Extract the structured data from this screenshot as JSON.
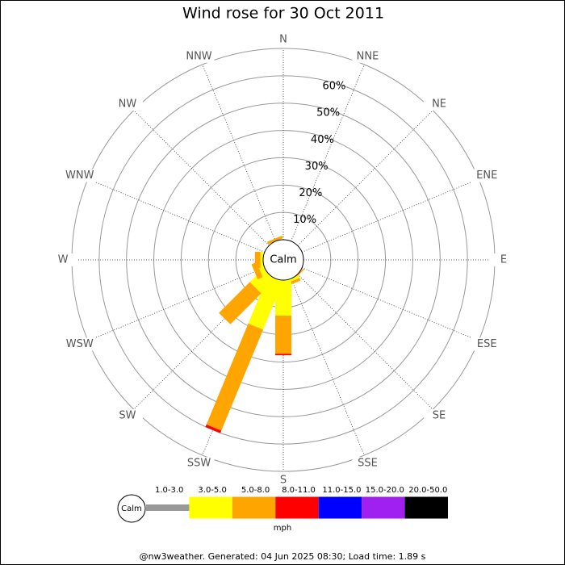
{
  "chart_data": {
    "type": "wind-rose",
    "title": "Wind rose for 30 Oct 2011",
    "categories": [
      "N",
      "NNE",
      "NE",
      "ENE",
      "E",
      "ESE",
      "SE",
      "SSE",
      "S",
      "SSW",
      "SW",
      "WSW",
      "W",
      "WNW",
      "NW",
      "NNW"
    ],
    "ylim": [
      0,
      70
    ],
    "yticks": [
      {
        "value": 10,
        "label": "10%"
      },
      {
        "value": 20,
        "label": "20%"
      },
      {
        "value": 30,
        "label": "30%"
      },
      {
        "value": 40,
        "label": "40%"
      },
      {
        "value": 50,
        "label": "50%"
      },
      {
        "value": 60,
        "label": "60%"
      }
    ],
    "calm_label": "Calm",
    "units": "mph",
    "series": [
      {
        "name": "1.0-3.0",
        "color": "#999999",
        "values": [
          0,
          0,
          0,
          0,
          0,
          0,
          0,
          0,
          0,
          0,
          0,
          0,
          0,
          0,
          0,
          0
        ]
      },
      {
        "name": "3.0-5.0",
        "color": "#ffff00",
        "values": [
          0,
          0,
          0,
          0,
          0,
          0,
          0,
          1,
          13,
          19,
          7,
          2,
          1,
          0,
          0,
          0
        ]
      },
      {
        "name": "5.0-8.0",
        "color": "#ffa500",
        "values": [
          0,
          0,
          0,
          0,
          0,
          0,
          0.5,
          1,
          14,
          40,
          16,
          2,
          2,
          0,
          0,
          1
        ]
      },
      {
        "name": "8.0-11.0",
        "color": "#ff0000",
        "values": [
          0,
          0,
          0,
          0,
          0,
          0,
          0,
          0,
          0.5,
          1,
          0,
          0,
          0,
          0,
          0,
          0
        ]
      },
      {
        "name": "11.0-15.0",
        "color": "#0000ff",
        "values": [
          0,
          0,
          0,
          0,
          0,
          0,
          0,
          0,
          0,
          0,
          0,
          0,
          0,
          0,
          0,
          0
        ]
      },
      {
        "name": "15.0-20.0",
        "color": "#a020f0",
        "values": [
          0,
          0,
          0,
          0,
          0,
          0,
          0,
          0,
          0,
          0,
          0,
          0,
          0,
          0,
          0,
          0
        ]
      },
      {
        "name": "20.0-50.0",
        "color": "#000000",
        "values": [
          0,
          0,
          0,
          0,
          0,
          0,
          0,
          0,
          0,
          0,
          0,
          0,
          0,
          0,
          0,
          0
        ]
      }
    ],
    "footer": "@nw3weather. Generated: 04 Jun 2025 08:30; Load time: 1.89 s"
  }
}
